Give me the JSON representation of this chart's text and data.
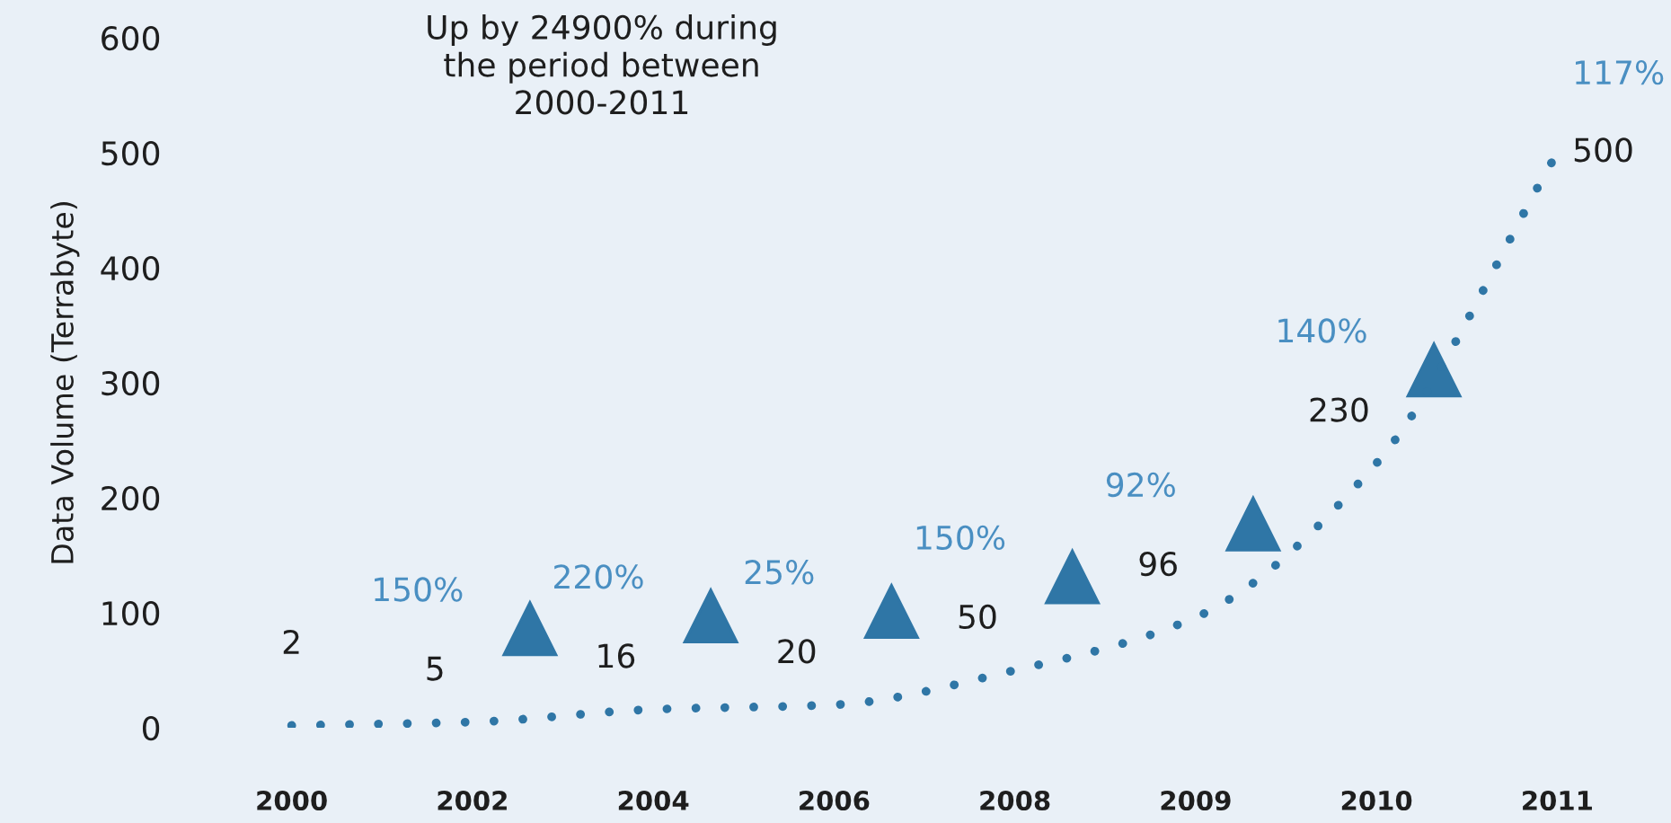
{
  "chart_data": {
    "type": "line",
    "ylabel": "Data Volume (Terrabyte)",
    "categories": [
      "2000",
      "2002",
      "2004",
      "2006",
      "2008",
      "2009",
      "2010",
      "2011"
    ],
    "series": [
      {
        "color": "#2f76a6",
        "values": [
          2,
          5,
          16,
          20,
          50,
          96,
          230,
          500
        ]
      }
    ],
    "ylim": [
      0,
      600
    ],
    "yticks": [
      0,
      100,
      200,
      300,
      400,
      500,
      600
    ],
    "line_style": "dotted",
    "data_labels": true,
    "annotations": [
      "Up by 24900% during\nthe period between\n2000-2011",
      "150%",
      "220%",
      "25%",
      "150%",
      "92%",
      "140%",
      "117%"
    ]
  }
}
